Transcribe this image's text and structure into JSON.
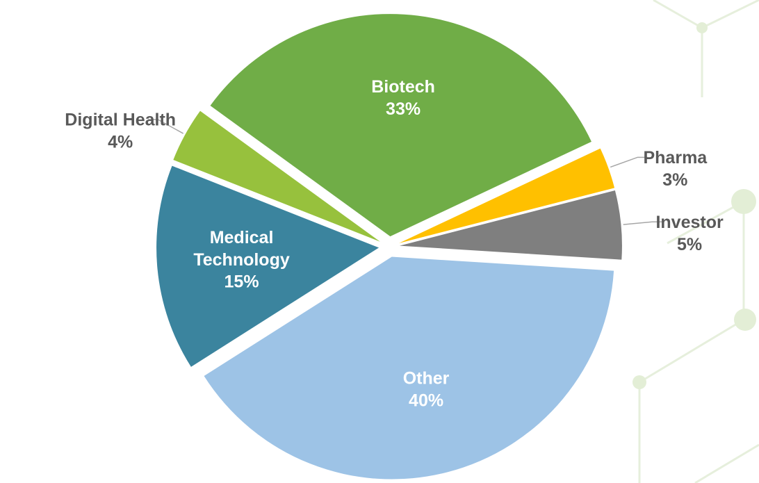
{
  "chart_data": {
    "type": "pie",
    "categories": [
      "Biotech",
      "Pharma",
      "Investor",
      "Other",
      "Medical Technology",
      "Digital Health"
    ],
    "values": [
      33,
      3,
      5,
      40,
      15,
      4
    ],
    "value_labels": [
      "33%",
      "3%",
      "5%",
      "40%",
      "15%",
      "4%"
    ],
    "colors": [
      "#70ad47",
      "#ffc000",
      "#7f7f7f",
      "#9dc3e6",
      "#3b849e",
      "#97c13d"
    ]
  }
}
